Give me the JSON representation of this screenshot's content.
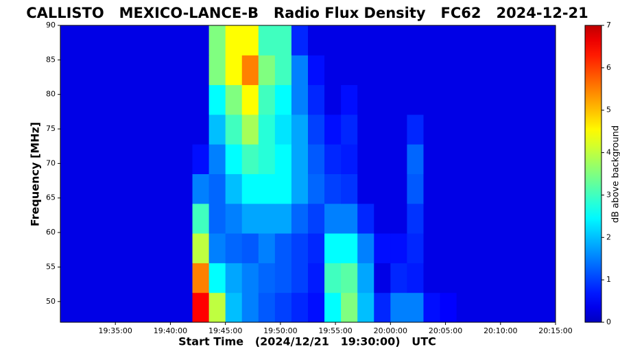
{
  "chart_data": {
    "type": "heatmap",
    "title": "CALLISTO   MEXICO-LANCE-B   Radio Flux Density   FC62   2024-12-21",
    "x_label": "Start Time   (2024/12/21   19:30:00)   UTC",
    "y_label": "Frequency [MHz]",
    "colorbar_label": "dB above background",
    "colorscale": "jet",
    "xlim": [
      "19:30:00",
      "20:15:00"
    ],
    "xticks": [
      "19:35:00",
      "19:40:00",
      "19:45:00",
      "19:50:00",
      "19:55:00",
      "20:00:00",
      "20:05:00",
      "20:10:00",
      "20:15:00"
    ],
    "ylim": [
      47,
      90
    ],
    "yticks": [
      50,
      55,
      60,
      65,
      70,
      75,
      80,
      85,
      90
    ],
    "zlim": [
      0,
      7
    ],
    "zticks": [
      0,
      1,
      2,
      3,
      4,
      5,
      6,
      7
    ],
    "x_edges": [
      "19:30:00",
      "19:31:30",
      "19:33:00",
      "19:34:30",
      "19:36:00",
      "19:37:30",
      "19:39:00",
      "19:40:30",
      "19:42:00",
      "19:43:30",
      "19:45:00",
      "19:46:30",
      "19:48:00",
      "19:49:30",
      "19:51:00",
      "19:52:30",
      "19:54:00",
      "19:55:30",
      "19:57:00",
      "19:58:30",
      "20:00:00",
      "20:01:30",
      "20:03:00",
      "20:04:30",
      "20:06:00",
      "20:07:30",
      "20:09:00",
      "20:10:30",
      "20:12:00",
      "20:13:30",
      "20:15:00"
    ],
    "y_edges": [
      47,
      51.3,
      55.6,
      59.9,
      64.2,
      68.5,
      72.8,
      77.1,
      81.4,
      85.7,
      90
    ],
    "z": [
      [
        0.3,
        0.3,
        0.3,
        0.3,
        0.3,
        0.3,
        0.3,
        0.3,
        6.5,
        4,
        2,
        1.5,
        1.2,
        1,
        0.8,
        0.6,
        2.5,
        3.5,
        2,
        0.8,
        1.5,
        1.5,
        0.6,
        0.5,
        0.3,
        0.3,
        0.3,
        0.3,
        0.3,
        0.3
      ],
      [
        0.3,
        0.3,
        0.3,
        0.3,
        0.3,
        0.3,
        0.3,
        0.3,
        5.5,
        2.5,
        1.8,
        1.5,
        1.3,
        1.2,
        1,
        0.7,
        3,
        3.2,
        1.8,
        0.3,
        0.8,
        0.7,
        0.3,
        0.3,
        0.3,
        0.3,
        0.3,
        0.3,
        0.3,
        0.3
      ],
      [
        0.3,
        0.3,
        0.3,
        0.3,
        0.3,
        0.3,
        0.3,
        0.3,
        4,
        1.5,
        1.3,
        1.2,
        1.5,
        1.2,
        1,
        0.8,
        2.5,
        2.5,
        1.5,
        0.6,
        0.6,
        0.8,
        0.3,
        0.3,
        0.3,
        0.3,
        0.3,
        0.3,
        0.3,
        0.3
      ],
      [
        0.3,
        0.3,
        0.3,
        0.3,
        0.3,
        0.3,
        0.3,
        0.3,
        3,
        1.3,
        1.5,
        1.8,
        1.8,
        1.8,
        1.3,
        1,
        1.5,
        1.5,
        0.8,
        0.3,
        0.3,
        0.9,
        0.3,
        0.3,
        0.3,
        0.3,
        0.3,
        0.3,
        0.3,
        0.3
      ],
      [
        0.3,
        0.3,
        0.3,
        0.3,
        0.3,
        0.3,
        0.3,
        0.3,
        1.5,
        1.3,
        2,
        2.5,
        2.5,
        2.5,
        1.8,
        1.3,
        1,
        0.9,
        0.3,
        0.3,
        0.3,
        1.2,
        0.3,
        0.3,
        0.3,
        0.3,
        0.3,
        0.3,
        0.3,
        0.3
      ],
      [
        0.3,
        0.3,
        0.3,
        0.3,
        0.3,
        0.3,
        0.3,
        0.3,
        0.6,
        1.5,
        2.5,
        3,
        2.8,
        2.5,
        1.8,
        1.2,
        0.8,
        0.7,
        0.3,
        0.3,
        0.3,
        1.3,
        0.3,
        0.3,
        0.3,
        0.3,
        0.3,
        0.3,
        0.3,
        0.3
      ],
      [
        0.3,
        0.3,
        0.3,
        0.3,
        0.3,
        0.3,
        0.3,
        0.3,
        0.3,
        2,
        3,
        3.8,
        2.8,
        2.3,
        1.8,
        1,
        0.6,
        0.8,
        0.3,
        0.3,
        0.3,
        0.8,
        0.3,
        0.3,
        0.3,
        0.3,
        0.3,
        0.3,
        0.3,
        0.3
      ],
      [
        0.3,
        0.3,
        0.3,
        0.3,
        0.3,
        0.3,
        0.3,
        0.3,
        0.3,
        2.5,
        3.5,
        4.5,
        3,
        2.5,
        1.5,
        0.8,
        0.3,
        0.6,
        0.3,
        0.3,
        0.3,
        0.3,
        0.3,
        0.3,
        0.3,
        0.3,
        0.3,
        0.3,
        0.3,
        0.3
      ],
      [
        0.3,
        0.3,
        0.3,
        0.3,
        0.3,
        0.3,
        0.3,
        0.3,
        0.3,
        3.5,
        4.5,
        5.5,
        3.5,
        3,
        1.5,
        0.6,
        0.3,
        0.3,
        0.3,
        0.3,
        0.3,
        0.3,
        0.3,
        0.3,
        0.3,
        0.3,
        0.3,
        0.3,
        0.3,
        0.3
      ],
      [
        0.3,
        0.3,
        0.3,
        0.3,
        0.3,
        0.3,
        0.3,
        0.3,
        0.3,
        3.5,
        4.5,
        4.5,
        3,
        3,
        0.8,
        0.3,
        0.3,
        0.3,
        0.3,
        0.3,
        0.3,
        0.3,
        0.3,
        0.3,
        0.3,
        0.3,
        0.3,
        0.3,
        0.3,
        0.3
      ]
    ]
  }
}
